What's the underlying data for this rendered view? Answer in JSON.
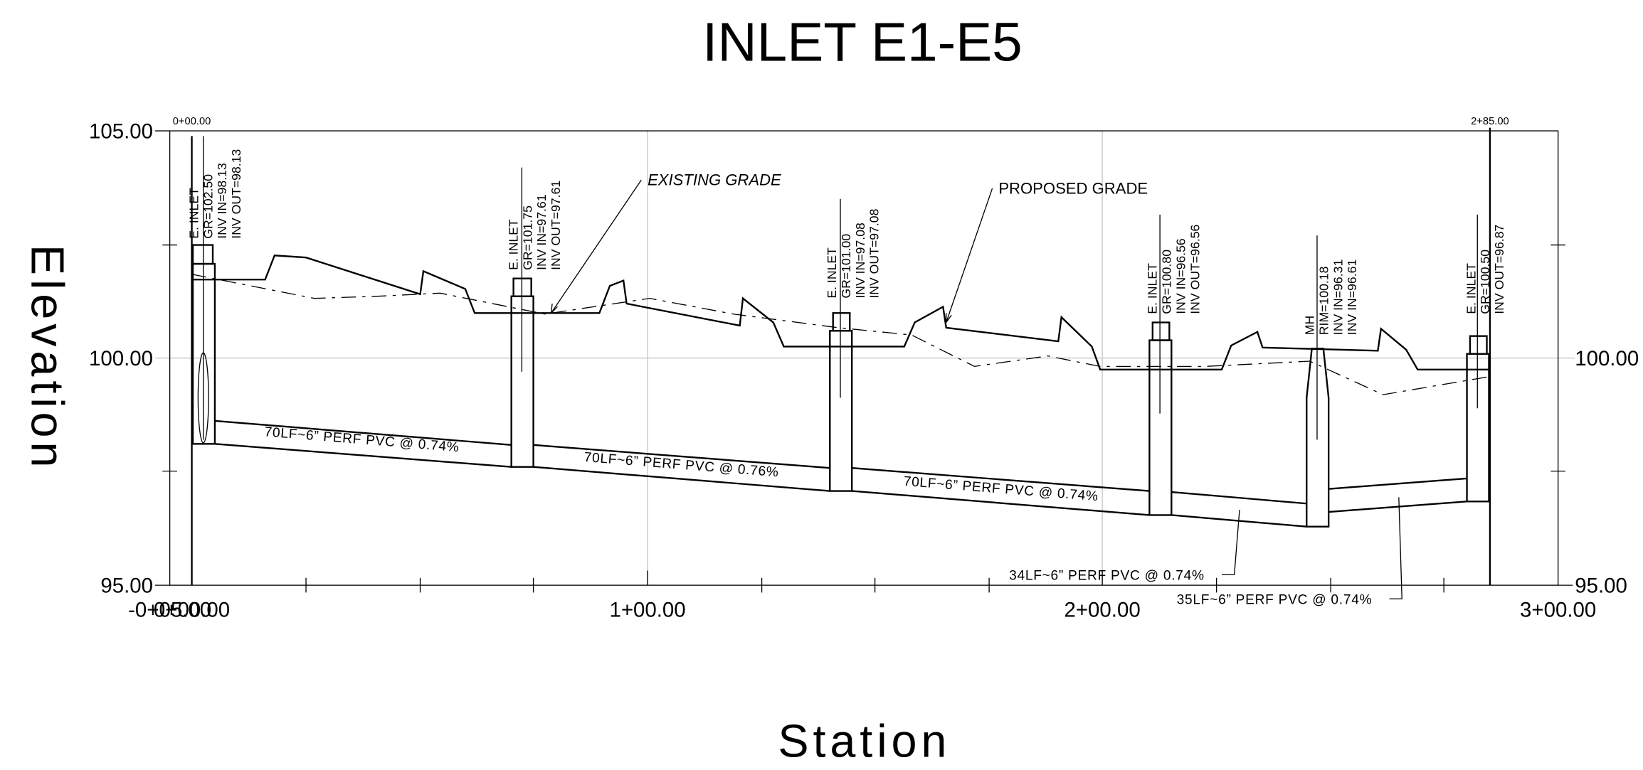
{
  "title": "INLET E1-E5",
  "axes": {
    "y_label": "Elevation",
    "x_label": "Station",
    "y_ticks_left": [
      "105.00",
      "100.00",
      "95.00"
    ],
    "y_ticks_right": [
      "100.00",
      "95.00"
    ],
    "x_ticks": [
      "-0+05.00",
      "0+00.00",
      "1+00.00",
      "2+00.00",
      "3+00.00"
    ],
    "station_marks": [
      "0+00.00",
      "2+85.00"
    ]
  },
  "annotations": [
    "EXISTING GRADE",
    "PROPOSED GRADE"
  ],
  "structures": [
    {
      "labels": [
        "E. INLET",
        "GR=102.50",
        "INV IN=98.13",
        "INV OUT=98.13"
      ]
    },
    {
      "labels": [
        "E. INLET",
        "GR=101.75",
        "INV IN=97.61",
        "INV OUT=97.61"
      ]
    },
    {
      "labels": [
        "E. INLET",
        "GR=101.00",
        "INV IN=97.08",
        "INV OUT=97.08"
      ]
    },
    {
      "labels": [
        "E. INLET",
        "GR=100.80",
        "INV IN=96.56",
        "INV OUT=96.56"
      ]
    },
    {
      "labels": [
        "MH",
        "RIM=100.18",
        "INV IN=96.31",
        "INV IN=96.61"
      ]
    },
    {
      "labels": [
        "E. INLET",
        "GR=100.50",
        "INV OUT=96.87"
      ]
    }
  ],
  "pipes": [
    "70LF~6” PERF PVC @ 0.74%",
    "70LF~6” PERF PVC @ 0.76%",
    "70LF~6” PERF PVC @ 0.74%",
    "34LF~6” PERF PVC @ 0.74%",
    "35LF~6” PERF PVC @ 0.74%"
  ]
}
